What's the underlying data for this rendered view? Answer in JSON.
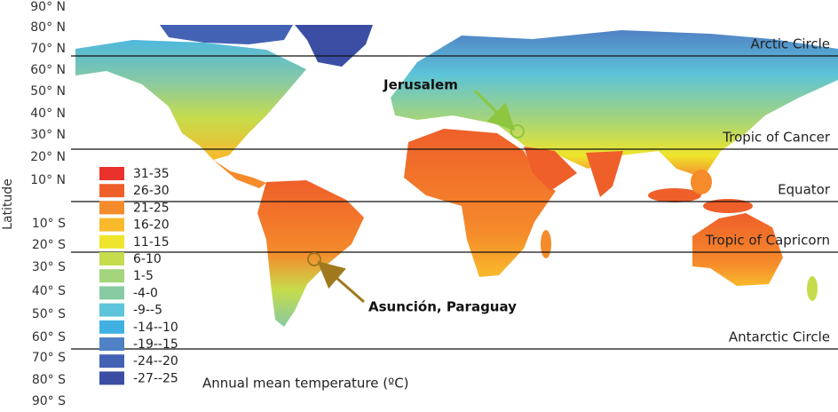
{
  "axis_label": "Latitude",
  "latitude_labels": [
    "90° N",
    "80° N",
    "70° N",
    "60° N",
    "50° N",
    "40° N",
    "30° N",
    "20° N",
    "10° N",
    "10° S",
    "20° S",
    "30° S",
    "40° S",
    "50° S",
    "60° S",
    "70° S",
    "80° S",
    "90° S"
  ],
  "reference_lines": [
    {
      "label": "Arctic Circle"
    },
    {
      "label": "Tropic of Cancer"
    },
    {
      "label": "Equator"
    },
    {
      "label": "Tropic of Capricorn"
    },
    {
      "label": "Antarctic Circle"
    }
  ],
  "legend": {
    "title": "Annual mean temperature (ºC)",
    "items": [
      {
        "label": "31-35",
        "color": "#e8322b"
      },
      {
        "label": "26-30",
        "color": "#ef5f2a"
      },
      {
        "label": "21-25",
        "color": "#f58b2b"
      },
      {
        "label": "16-20",
        "color": "#f8b92b"
      },
      {
        "label": "11-15",
        "color": "#eee52c"
      },
      {
        "label": "6-10",
        "color": "#c6dc4c"
      },
      {
        "label": "1-5",
        "color": "#a4d47c"
      },
      {
        "label": "-4-0",
        "color": "#88caa2"
      },
      {
        "label": "-9--5",
        "color": "#5dc4d9"
      },
      {
        "label": "-14--10",
        "color": "#40b0e3"
      },
      {
        "label": "-19--15",
        "color": "#5081c4"
      },
      {
        "label": "-24--20",
        "color": "#4462b4"
      },
      {
        "label": "-27--25",
        "color": "#3b4ea4"
      }
    ]
  },
  "annotations": [
    {
      "label": "Jerusalem"
    },
    {
      "label": "Asunción, Paraguay"
    }
  ]
}
